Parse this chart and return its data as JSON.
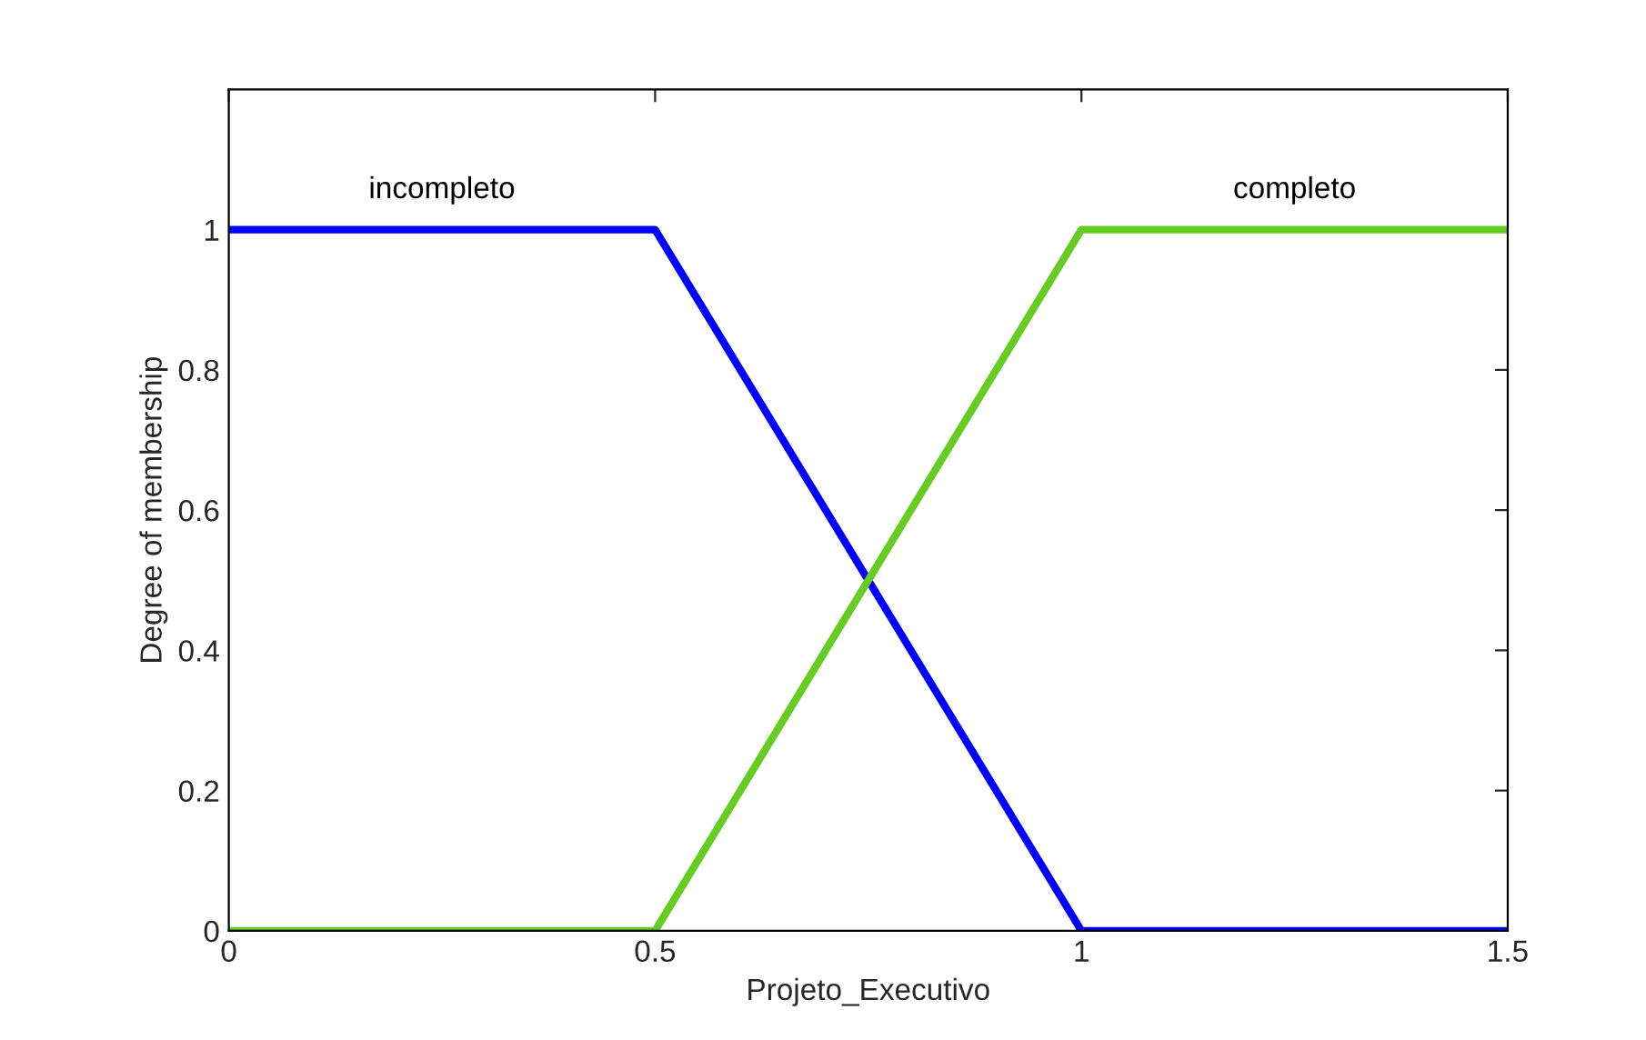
{
  "chart_data": {
    "type": "line",
    "xlabel": "Projeto_Executivo",
    "ylabel": "Degree of membership",
    "xlim": [
      0,
      1.5
    ],
    "ylim": [
      0,
      1.2
    ],
    "xticks": [
      0,
      0.5,
      1,
      1.5
    ],
    "yticks": [
      0,
      0.2,
      0.4,
      0.6,
      0.8,
      1
    ],
    "grid": false,
    "legend": false,
    "marker": "none",
    "line_style": "solid",
    "series": [
      {
        "name": "incompleto",
        "color": "#0000ff",
        "x": [
          0,
          0.5,
          1,
          1.5
        ],
        "values": [
          1,
          1,
          0,
          0
        ]
      },
      {
        "name": "completo",
        "color": "#66cc22",
        "x": [
          0,
          0.5,
          1,
          1.5
        ],
        "values": [
          0,
          0,
          1,
          1
        ]
      }
    ]
  }
}
